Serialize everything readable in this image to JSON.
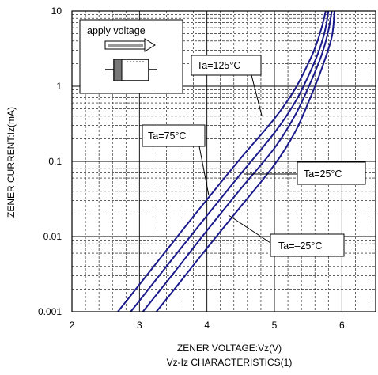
{
  "chart_data": {
    "type": "line",
    "xlabel": "ZENER VOLTAGE:Vz(V)",
    "ylabel": "ZENER CURRENT:Iz(mA)",
    "caption": "Vz-Iz CHARACTERISTICS(1)",
    "x_scale": "linear",
    "y_scale": "log",
    "xlim": [
      2,
      6.5
    ],
    "ylim": [
      0.001,
      10
    ],
    "x_ticks": [
      "2",
      "3",
      "4",
      "5",
      "6"
    ],
    "y_ticks": [
      "0.001",
      "0.01",
      "0.1",
      "1",
      "10"
    ],
    "grid": true,
    "line_color": "#1a1a8c",
    "series": [
      {
        "name": "Ta=125°C",
        "points": [
          [
            2.68,
            0.001
          ],
          [
            3.0,
            0.0023
          ],
          [
            3.5,
            0.0085
          ],
          [
            4.0,
            0.031
          ],
          [
            4.5,
            0.11
          ],
          [
            5.0,
            0.37
          ],
          [
            5.3,
            0.9
          ],
          [
            5.5,
            2.0
          ],
          [
            5.6,
            3.2
          ],
          [
            5.7,
            6.0
          ],
          [
            5.76,
            10
          ]
        ]
      },
      {
        "name": "Ta=75°C",
        "points": [
          [
            2.87,
            0.001
          ],
          [
            3.0,
            0.0014
          ],
          [
            3.5,
            0.0052
          ],
          [
            4.0,
            0.019
          ],
          [
            4.5,
            0.068
          ],
          [
            5.0,
            0.24
          ],
          [
            5.3,
            0.6
          ],
          [
            5.5,
            1.35
          ],
          [
            5.65,
            2.8
          ],
          [
            5.75,
            5.5
          ],
          [
            5.8,
            10
          ]
        ]
      },
      {
        "name": "Ta=25°C",
        "points": [
          [
            3.05,
            0.001
          ],
          [
            3.5,
            0.0032
          ],
          [
            4.0,
            0.012
          ],
          [
            4.5,
            0.043
          ],
          [
            5.0,
            0.15
          ],
          [
            5.3,
            0.4
          ],
          [
            5.5,
            0.95
          ],
          [
            5.7,
            2.6
          ],
          [
            5.8,
            5.5
          ],
          [
            5.85,
            10
          ]
        ]
      },
      {
        "name": "Ta=–25°C",
        "points": [
          [
            3.25,
            0.001
          ],
          [
            3.5,
            0.0019
          ],
          [
            4.0,
            0.007
          ],
          [
            4.5,
            0.025
          ],
          [
            5.0,
            0.09
          ],
          [
            5.3,
            0.24
          ],
          [
            5.5,
            0.6
          ],
          [
            5.7,
            1.7
          ],
          [
            5.85,
            4.5
          ],
          [
            5.89,
            10
          ]
        ]
      }
    ],
    "annotations": [
      {
        "label": "Ta=125°C",
        "series": "Ta=125°C"
      },
      {
        "label": "Ta=75°C",
        "series": "Ta=75°C"
      },
      {
        "label": "Ta=25°C",
        "series": "Ta=25°C"
      },
      {
        "label": "Ta=–25°C",
        "series": "Ta=–25°C"
      }
    ],
    "inset": {
      "label": "apply voltage"
    }
  }
}
